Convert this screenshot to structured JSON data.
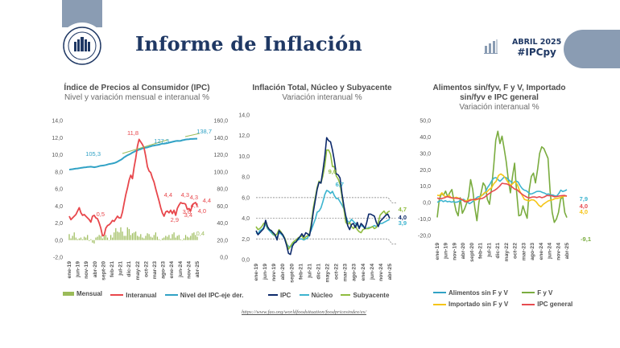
{
  "header": {
    "title": "Informe de Inflación",
    "logo_text_top": "BANCO CENTRAL",
    "logo_text_bottom": "DEL PARAGUAY",
    "edition_month": "ABRIL 2025",
    "hashtag": "#IPCpy"
  },
  "colors": {
    "brand_navy": "#1f3864",
    "brand_slate": "#8a9cb3",
    "mensual": "#9bbb59",
    "interanual": "#e8474c",
    "nivel": "#31a2c5",
    "ipc_navy": "#0d2a6b",
    "nucleo": "#3db4cf",
    "subyacente": "#8fbc3f",
    "fyv": "#7aac3f",
    "importado": "#f5c518",
    "ipc_general": "#e64b50"
  },
  "x_ticks": [
    "ene-19",
    "jun-19",
    "nov-19",
    "abr-20",
    "sept-20",
    "feb-21",
    "jul-21",
    "dic-21",
    "may-22",
    "oct-22",
    "mar-23",
    "ago-23",
    "ene-24",
    "jun-24",
    "nov-24",
    "abr-25"
  ],
  "source_url": "https://www.fao.org/worldfoodsituation/foodpricesindex/es/",
  "chart_data": [
    {
      "type": "line",
      "title": "Índice de Precios al Consumidor (IPC)",
      "subtitle": "Nivel y variación mensual e interanual %",
      "ylim": [
        -2,
        14
      ],
      "yticks": [
        "14,0",
        "12,0",
        "10,0",
        "8,0",
        "6,0",
        "4,0",
        "2,0",
        "0,0",
        "-2,0"
      ],
      "y2lim": [
        0,
        160
      ],
      "y2ticks": [
        "160,0",
        "140,0",
        "120,0",
        "100,0",
        "80,0",
        "60,0",
        "40,0",
        "20,0",
        "0,0"
      ],
      "legend": [
        "Mensual",
        "Interanual",
        "Nivel del IPC-eje der."
      ],
      "legend_position": "bottom",
      "annotations": [
        "11,8",
        "127,3",
        "105,3",
        "138,7",
        "0,5",
        "4,4",
        "4,3",
        "3,6",
        "2,9",
        "4,1",
        "3,4",
        "4,3",
        "4,4",
        "4,0",
        "0,4"
      ],
      "series": [
        {
          "name": "Interanual",
          "axis": "left",
          "values": [
            2.8,
            2.4,
            2.6,
            2.8,
            3.0,
            3.4,
            3.8,
            3.2,
            2.9,
            3.0,
            2.8,
            2.6,
            2.4,
            2.1,
            2.8,
            2.9,
            2.6,
            2.5,
            2.0,
            1.4,
            0.5,
            0.6,
            1.4,
            1.7,
            1.8,
            2.0,
            2.3,
            2.2,
            2.5,
            2.8,
            2.6,
            2.6,
            3.3,
            4.3,
            5.3,
            6.1,
            7.0,
            7.6,
            7.2,
            8.5,
            9.6,
            11.0,
            11.8,
            11.5,
            11.2,
            10.8,
            9.8,
            8.6,
            8.1,
            7.9,
            7.3,
            6.8,
            6.0,
            5.3,
            4.6,
            3.8,
            3.2,
            2.8,
            3.3,
            3.4,
            3.2,
            3.5,
            3.1,
            3.5,
            2.9,
            3.7,
            4.1,
            4.4,
            4.3,
            4.3,
            4.2,
            3.6,
            3.7,
            3.4,
            4.1,
            4.3,
            4.4,
            4.0
          ]
        },
        {
          "name": "Nivel del IPC-eje der.",
          "axis": "right",
          "values": [
            102.5,
            102.9,
            103.1,
            103.4,
            103.7,
            103.9,
            104.2,
            104.6,
            104.8,
            105.1,
            105.3,
            105.6,
            105.8,
            106.0,
            105.7,
            105.3,
            105.6,
            106.1,
            106.6,
            107.1,
            107.3,
            107.6,
            108.0,
            108.5,
            109.1,
            109.4,
            109.7,
            110.2,
            110.9,
            111.8,
            112.9,
            114.0,
            115.3,
            116.9,
            118.1,
            119.3,
            120.2,
            121.2,
            122.4,
            123.4,
            124.4,
            125.1,
            126.0,
            126.5,
            127.3,
            127.8,
            128.3,
            128.6,
            129.3,
            129.8,
            130.4,
            130.7,
            131.2,
            131.4,
            131.8,
            132.4,
            132.9,
            133.0,
            133.3,
            133.6,
            134.1,
            134.6,
            135.1,
            135.5,
            136.0,
            136.2,
            136.1,
            136.3,
            136.9,
            137.3,
            137.8,
            138.0,
            138.2,
            138.4,
            138.4,
            138.6,
            138.7,
            138.7
          ]
        },
        {
          "name": "Mensual",
          "axis": "left",
          "type": "bar",
          "values": [
            0.7,
            0.2,
            0.5,
            0.9,
            0.3,
            0.1,
            0.2,
            0.3,
            0.1,
            0.4,
            0.3,
            0.6,
            -0.1,
            0.1,
            -0.3,
            -0.4,
            0.3,
            0.4,
            0.6,
            0.5,
            0.2,
            0.5,
            0.6,
            0.3,
            0.0,
            0.6,
            0.3,
            0.9,
            1.4,
            1.0,
            0.9,
            1.5,
            1.0,
            0.5,
            0.5,
            1.5,
            1.3,
            0.6,
            0.8,
            0.9,
            1.0,
            0.5,
            0.4,
            0.7,
            0.3,
            0.2,
            0.5,
            0.8,
            0.7,
            0.4,
            0.3,
            0.6,
            0.9,
            0.4,
            0.1,
            0.0,
            0.2,
            0.3,
            0.5,
            0.4,
            0.6,
            0.2,
            0.7,
            0.9,
            0.3,
            0.5,
            0.6,
            0.1,
            0.0,
            0.2,
            0.6,
            0.4,
            0.3,
            0.5,
            0.8,
            0.9,
            0.6,
            0.4
          ]
        }
      ]
    },
    {
      "type": "line",
      "title": "Inflación Total, Núcleo y Subyacente",
      "subtitle": "Variación interanual %",
      "ylim": [
        0,
        14
      ],
      "yticks": [
        "14,0",
        "12,0",
        "10,0",
        "8,0",
        "6,0",
        "4,0",
        "2,0",
        "0,0"
      ],
      "target_band": {
        "center": 4.0,
        "upper": 6.0,
        "lower": 2.0,
        "upper_new": 5.5,
        "lower_new": 1.5
      },
      "legend": [
        "IPC",
        "Núcleo",
        "Subyacente"
      ],
      "legend_position": "bottom",
      "annotations": [
        "9,0",
        "6,7",
        "4,7",
        "4,0",
        "3,9"
      ],
      "series": [
        {
          "name": "IPC",
          "values": [
            2.8,
            2.4,
            2.6,
            2.8,
            3.0,
            3.8,
            3.2,
            2.9,
            2.8,
            2.6,
            2.4,
            1.9,
            2.8,
            2.6,
            2.4,
            2.0,
            1.4,
            0.6,
            0.5,
            1.3,
            1.6,
            1.7,
            2.0,
            2.2,
            2.5,
            2.2,
            2.6,
            2.5,
            2.3,
            3.3,
            4.6,
            5.7,
            6.8,
            7.5,
            7.4,
            8.6,
            10.0,
            11.8,
            11.5,
            11.4,
            10.6,
            9.6,
            8.3,
            8.2,
            7.9,
            6.4,
            5.2,
            4.2,
            3.3,
            2.9,
            3.4,
            3.5,
            3.1,
            3.6,
            3.0,
            3.5,
            3.3,
            3.0,
            3.6,
            4.4,
            4.4,
            4.3,
            4.2,
            3.6,
            3.2,
            3.7,
            3.9,
            4.1,
            4.3,
            4.4,
            4.0
          ]
        },
        {
          "name": "Núcleo",
          "values": [
            2.6,
            2.5,
            2.8,
            2.9,
            3.1,
            3.4,
            3.0,
            2.8,
            2.6,
            2.4,
            2.3,
            2.1,
            2.6,
            2.5,
            2.3,
            2.0,
            1.5,
            1.3,
            1.2,
            1.5,
            1.7,
            1.9,
            1.9,
            2.0,
            2.0,
            1.9,
            2.0,
            2.1,
            2.5,
            2.9,
            3.4,
            3.9,
            4.6,
            4.7,
            5.0,
            5.6,
            6.3,
            6.7,
            6.6,
            6.4,
            6.6,
            6.2,
            5.9,
            5.9,
            5.6,
            5.3,
            4.9,
            4.2,
            3.7,
            3.6,
            3.9,
            3.7,
            3.5,
            3.3,
            3.2,
            3.3,
            3.2,
            3.1,
            3.0,
            3.1,
            3.1,
            3.2,
            3.3,
            3.2,
            3.3,
            3.5,
            3.5,
            3.6,
            3.7,
            3.8,
            3.9
          ]
        },
        {
          "name": "Subyacente",
          "values": [
            3.2,
            2.9,
            3.0,
            3.2,
            3.5,
            3.6,
            3.1,
            2.9,
            2.8,
            2.5,
            2.3,
            2.5,
            2.9,
            2.7,
            2.4,
            2.1,
            1.6,
            1.0,
            1.3,
            1.6,
            1.8,
            1.9,
            2.1,
            2.2,
            2.3,
            2.0,
            2.2,
            2.3,
            2.5,
            3.6,
            5.0,
            6.0,
            7.0,
            7.6,
            7.4,
            8.1,
            9.1,
            10.6,
            10.6,
            10.2,
            9.0,
            9.0,
            8.1,
            7.8,
            7.3,
            6.1,
            4.9,
            3.6,
            3.4,
            3.6,
            3.2,
            3.0,
            3.3,
            2.9,
            2.7,
            2.6,
            2.9,
            3.0,
            3.0,
            3.0,
            3.1,
            3.2,
            3.0,
            3.1,
            3.6,
            4.3,
            4.5,
            4.7,
            4.4,
            4.6,
            4.7
          ]
        }
      ]
    },
    {
      "type": "line",
      "title": "Alimentos sin/fyv, F y V, Importado sin/fyv e IPC general",
      "subtitle": "Variación interanual %",
      "ylim": [
        -20,
        50
      ],
      "yticks": [
        "50,0",
        "40,0",
        "30,0",
        "20,0",
        "10,0",
        "0,0",
        "-10,0",
        "-20,0"
      ],
      "legend": [
        "Alimentos sin F y V",
        "F y V",
        "Importado sin F y V",
        "IPC general"
      ],
      "legend_position": "bottom",
      "annotations": [
        "7,9",
        "4,0",
        "4,0",
        "-9,1"
      ],
      "series": [
        {
          "name": "Alimentos sin F y V",
          "values": [
            0.2,
            0.8,
            1.5,
            0.6,
            1.2,
            0.5,
            0.8,
            0.3,
            0.6,
            0.2,
            0.4,
            1.0,
            1.5,
            2.1,
            1.2,
            0.2,
            -0.6,
            0.2,
            1.2,
            2.5,
            3.5,
            3.8,
            4.3,
            5.2,
            7.0,
            9.5,
            11.2,
            13.5,
            15.0,
            15.2,
            14.0,
            13.0,
            14.2,
            15.6,
            15.3,
            14.2,
            13.2,
            12.0,
            12.3,
            13.1,
            12.5,
            10.2,
            8.5,
            7.6,
            7.2,
            6.2,
            5.2,
            5.5,
            6.1,
            6.8,
            6.9,
            6.8,
            6.2,
            5.8,
            5.1,
            5.3,
            4.6,
            4.7,
            4.2,
            4.0,
            5.5,
            7.6,
            6.8,
            7.2,
            7.9
          ]
        },
        {
          "name": "F y V",
          "values": [
            -9.0,
            2.0,
            5.5,
            4.5,
            7.0,
            3.5,
            6.0,
            8.0,
            1.0,
            -5.0,
            -8.0,
            3.0,
            -6.5,
            -4.0,
            -0.5,
            4.0,
            14.0,
            8.0,
            -3.0,
            -11.0,
            0.5,
            6.0,
            12.0,
            10.0,
            2.0,
            -1.0,
            9.0,
            22.0,
            38.0,
            43.5,
            36.0,
            40.5,
            33.0,
            25.0,
            14.0,
            6.0,
            16.0,
            24.0,
            6.0,
            -8.0,
            -7.5,
            -2.0,
            -6.0,
            -9.5,
            8.0,
            16.0,
            18.0,
            12.0,
            20.0,
            30.0,
            34.0,
            33.0,
            30.0,
            27.0,
            7.0,
            -6.0,
            -12.0,
            -10.0,
            -6.0,
            2.0,
            4.0,
            -6.0,
            -9.1
          ]
        },
        {
          "name": "Importado sin F y V",
          "values": [
            4.5,
            4.3,
            6.0,
            4.0,
            3.5,
            4.5,
            3.0,
            2.5,
            3.3,
            2.8,
            2.0,
            1.5,
            1.0,
            1.5,
            2.0,
            1.8,
            1.5,
            2.0,
            3.0,
            4.5,
            6.0,
            6.5,
            8.0,
            9.0,
            11.5,
            13.0,
            16.5,
            17.5,
            16.5,
            14.8,
            12.5,
            10.5,
            11.5,
            13.0,
            11.0,
            7.0,
            4.5,
            2.0,
            1.5,
            1.0,
            1.8,
            1.6,
            0.5,
            -1.5,
            -2.5,
            -1.0,
            0.0,
            1.0,
            1.5,
            1.8,
            2.5,
            2.6,
            3.0,
            3.5,
            4.0,
            4.0
          ]
        },
        {
          "name": "IPC general",
          "values": [
            2.8,
            2.4,
            2.6,
            3.0,
            3.8,
            3.2,
            2.9,
            2.8,
            2.6,
            2.4,
            1.9,
            0.6,
            0.5,
            1.3,
            1.8,
            2.0,
            2.2,
            2.3,
            2.5,
            3.3,
            4.6,
            5.7,
            6.8,
            7.5,
            8.6,
            10.0,
            11.8,
            11.5,
            11.4,
            10.6,
            9.6,
            8.3,
            7.9,
            6.4,
            5.2,
            4.2,
            3.3,
            2.9,
            3.4,
            3.5,
            3.1,
            3.6,
            3.0,
            3.5,
            4.4,
            4.3,
            4.2,
            3.6,
            3.7,
            4.1,
            4.3,
            4.4,
            4.0
          ]
        }
      ]
    }
  ],
  "charts": [
    {
      "title": "Índice de Precios al Consumidor (IPC)",
      "subtitle": "Nivel y variación mensual e interanual %"
    },
    {
      "title": "Inflación Total, Núcleo y Subyacente",
      "subtitle": "Variación interanual %"
    },
    {
      "title_line1": "Alimentos sin/fyv, F y V, Importado",
      "title_line2": "sin/fyv e IPC general",
      "subtitle": "Variación interanual %"
    }
  ]
}
